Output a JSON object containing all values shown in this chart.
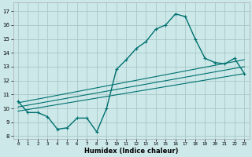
{
  "xlabel": "Humidex (Indice chaleur)",
  "bg_color": "#cce8e8",
  "grid_color": "#aac8c8",
  "line_color": "#007070",
  "xlim": [
    -0.5,
    23.5
  ],
  "ylim": [
    7.8,
    17.6
  ],
  "yticks": [
    8,
    9,
    10,
    11,
    12,
    13,
    14,
    15,
    16,
    17
  ],
  "xticks": [
    0,
    1,
    2,
    3,
    4,
    5,
    6,
    7,
    8,
    9,
    10,
    11,
    12,
    13,
    14,
    15,
    16,
    17,
    18,
    19,
    20,
    21,
    22,
    23
  ],
  "main_curve_x": [
    0,
    1,
    2,
    3,
    4,
    5,
    6,
    7,
    8,
    9,
    10,
    11,
    12,
    13,
    14,
    15,
    16,
    17,
    18,
    19,
    20,
    21,
    22,
    23
  ],
  "main_curve_y": [
    10.5,
    9.7,
    9.7,
    9.4,
    8.5,
    8.6,
    9.3,
    9.3,
    8.3,
    10.0,
    12.8,
    13.5,
    14.3,
    14.8,
    15.7,
    16.0,
    16.8,
    16.6,
    15.0,
    13.6,
    13.3,
    13.2,
    13.6,
    12.5
  ],
  "trend1_x": [
    0,
    23
  ],
  "trend1_y": [
    10.4,
    13.5
  ],
  "trend2_x": [
    0,
    23
  ],
  "trend2_y": [
    10.1,
    13.0
  ],
  "trend3_x": [
    0,
    23
  ],
  "trend3_y": [
    9.8,
    12.5
  ]
}
